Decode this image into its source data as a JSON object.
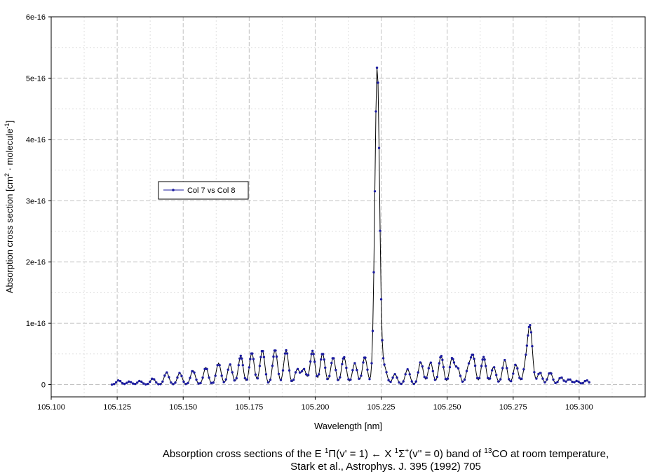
{
  "chart_data": {
    "type": "line",
    "xlabel": "Wavelength [nm]",
    "ylabel": {
      "prefix": "Absorption cross section [cm",
      "exp1": "2",
      "mid": " · molecule",
      "exp2": "-1",
      "suffix": "]"
    },
    "xlim": [
      105.1,
      105.325
    ],
    "ylim": [
      -2e-17,
      6e-16
    ],
    "x_ticks": [
      105.1,
      105.125,
      105.15,
      105.175,
      105.2,
      105.225,
      105.25,
      105.275,
      105.3
    ],
    "x_tick_labels": [
      "105.100",
      "105.125",
      "105.150",
      "105.175",
      "105.200",
      "105.225",
      "105.250",
      "105.275",
      "105.300"
    ],
    "y_ticks": [
      0,
      1e-16,
      2e-16,
      3e-16,
      4e-16,
      5e-16,
      6e-16
    ],
    "y_tick_labels": [
      "0",
      "1e-16",
      "2e-16",
      "3e-16",
      "4e-16",
      "5e-16",
      "6e-16"
    ],
    "grid": true,
    "legend_position": "upper-left",
    "series": [
      {
        "name": "Col 7 vs Col 8",
        "color": "#1c1ca0",
        "line_color": "#000000",
        "x_range": [
          105.123,
          105.304
        ],
        "peaks": [
          {
            "x": 105.1256,
            "y": 7e-18
          },
          {
            "x": 105.1296,
            "y": 5e-18
          },
          {
            "x": 105.1336,
            "y": 6e-18
          },
          {
            "x": 105.1385,
            "y": 1e-17
          },
          {
            "x": 105.1437,
            "y": 2e-17
          },
          {
            "x": 105.1487,
            "y": 1.9e-17
          },
          {
            "x": 105.1537,
            "y": 2.3e-17
          },
          {
            "x": 105.1586,
            "y": 2.8e-17
          },
          {
            "x": 105.1634,
            "y": 3.5e-17
          },
          {
            "x": 105.1677,
            "y": 3.3e-17
          },
          {
            "x": 105.1718,
            "y": 4.7e-17
          },
          {
            "x": 105.176,
            "y": 5.2e-17
          },
          {
            "x": 105.18,
            "y": 5.6e-17
          },
          {
            "x": 105.1848,
            "y": 5.7e-17
          },
          {
            "x": 105.189,
            "y": 5.6e-17
          },
          {
            "x": 105.1932,
            "y": 2.5e-17
          },
          {
            "x": 105.1957,
            "y": 2.5e-17
          },
          {
            "x": 105.199,
            "y": 5.5e-17
          },
          {
            "x": 105.2028,
            "y": 5.1e-17
          },
          {
            "x": 105.2068,
            "y": 4.4e-17
          },
          {
            "x": 105.2109,
            "y": 4.5e-17
          },
          {
            "x": 105.215,
            "y": 3.5e-17
          },
          {
            "x": 105.2188,
            "y": 4.5e-17
          },
          {
            "x": 105.2235,
            "y": 5.2e-16
          },
          {
            "x": 105.2263,
            "y": 2.7e-17
          },
          {
            "x": 105.2302,
            "y": 1.7e-17
          },
          {
            "x": 105.235,
            "y": 2.5e-17
          },
          {
            "x": 105.24,
            "y": 3.7e-17
          },
          {
            "x": 105.2437,
            "y": 3.6e-17
          },
          {
            "x": 105.2477,
            "y": 4.7e-17
          },
          {
            "x": 105.2518,
            "y": 4.2e-17
          },
          {
            "x": 105.254,
            "y": 2.6e-17
          },
          {
            "x": 105.258,
            "y": 2.6e-17
          },
          {
            "x": 105.2598,
            "y": 4.5e-17
          },
          {
            "x": 105.2638,
            "y": 4.5e-17
          },
          {
            "x": 105.2676,
            "y": 2.9e-17
          },
          {
            "x": 105.2718,
            "y": 4e-17
          },
          {
            "x": 105.276,
            "y": 3.3e-17
          },
          {
            "x": 105.2797,
            "y": 3e-17
          },
          {
            "x": 105.2814,
            "y": 9.2e-17
          },
          {
            "x": 105.2851,
            "y": 2e-17
          },
          {
            "x": 105.289,
            "y": 2e-17
          },
          {
            "x": 105.2931,
            "y": 1.2e-17
          },
          {
            "x": 105.2962,
            "y": 9e-18
          },
          {
            "x": 105.2992,
            "y": 6e-18
          },
          {
            "x": 105.3028,
            "y": 7e-18
          }
        ]
      }
    ]
  },
  "caption": {
    "line1": {
      "a": "Absorption cross sections of the E ",
      "s1": "1",
      "b": "Π(v' = 1) ← X ",
      "s2": "1",
      "c": "Σ",
      "s3": "+",
      "d": "(v'' = 0) band of ",
      "s4": "13",
      "e": "CO at room temperature,"
    },
    "line2": "Stark et al., Astrophys. J. 395 (1992) 705"
  }
}
